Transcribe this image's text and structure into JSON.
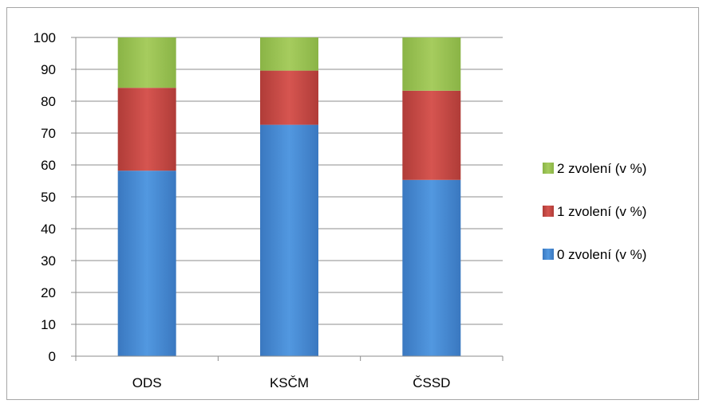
{
  "chart_data": {
    "type": "bar",
    "stacked": true,
    "categories": [
      "ODS",
      "KSČM",
      "ČSSD"
    ],
    "series": [
      {
        "name": "0 zvolení (v %)",
        "values": [
          58.2,
          72.6,
          55.3
        ],
        "color": "#4a8fd6"
      },
      {
        "name": "1 zvolení (v %)",
        "values": [
          26.0,
          17.0,
          28.0
        ],
        "color": "#c84a45"
      },
      {
        "name": "2 zvolení (v %)",
        "values": [
          15.8,
          10.4,
          16.7
        ],
        "color": "#9cc454"
      }
    ],
    "ylim": [
      0,
      100
    ],
    "yticks": [
      "0",
      "10",
      "20",
      "30",
      "40",
      "50",
      "60",
      "70",
      "80",
      "90",
      "100"
    ],
    "grid": true,
    "legend_position": "right",
    "legend_order": [
      "2 zvolení (v %)",
      "1 zvolení (v %)",
      "0 zvolení (v %)"
    ]
  }
}
